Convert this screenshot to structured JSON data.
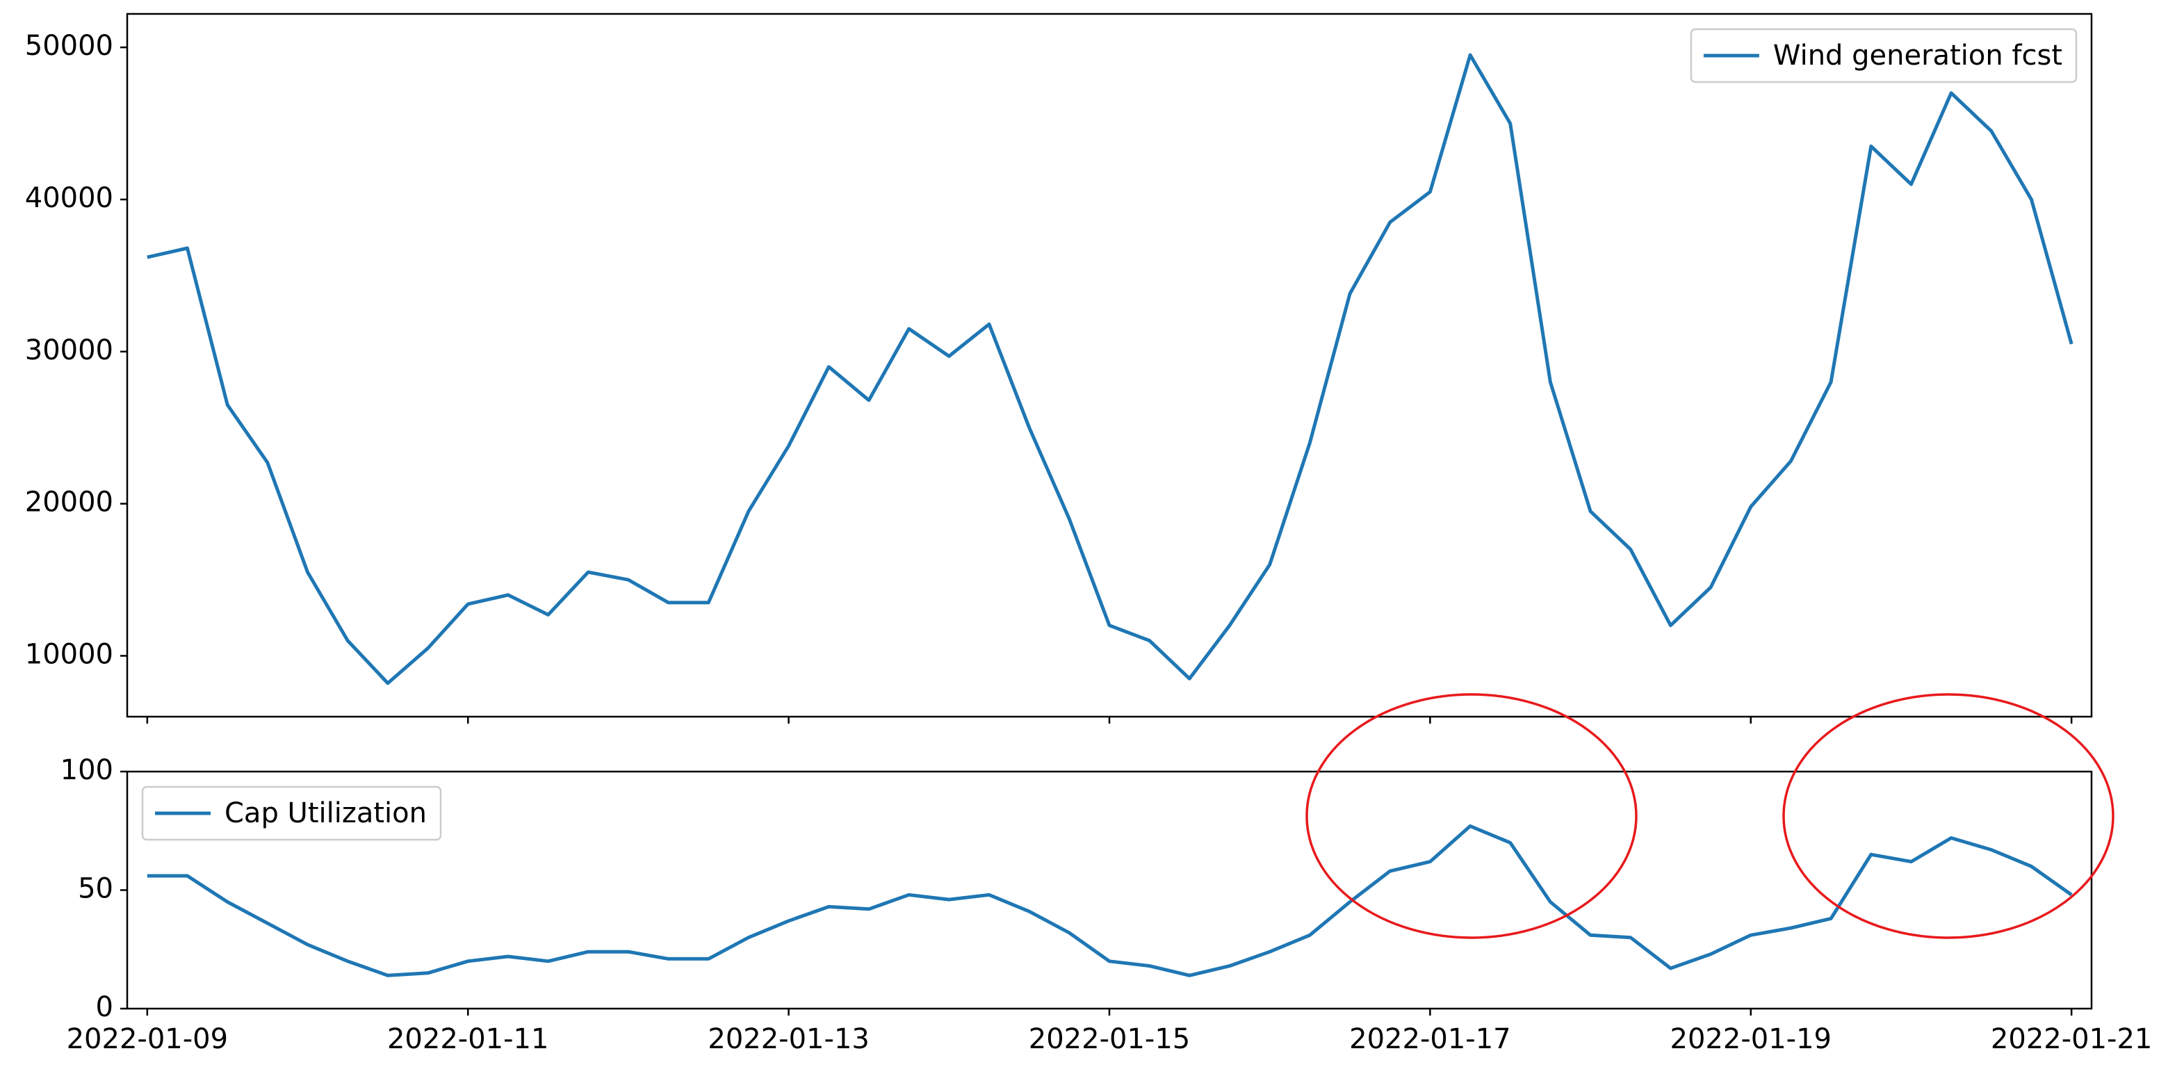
{
  "chart_data": [
    {
      "type": "line",
      "x": [
        "2022-01-09T00:00",
        "2022-01-09T06:00",
        "2022-01-09T12:00",
        "2022-01-09T18:00",
        "2022-01-10T00:00",
        "2022-01-10T06:00",
        "2022-01-10T12:00",
        "2022-01-10T18:00",
        "2022-01-11T00:00",
        "2022-01-11T06:00",
        "2022-01-11T12:00",
        "2022-01-11T18:00",
        "2022-01-12T00:00",
        "2022-01-12T06:00",
        "2022-01-12T12:00",
        "2022-01-12T18:00",
        "2022-01-13T00:00",
        "2022-01-13T06:00",
        "2022-01-13T12:00",
        "2022-01-13T18:00",
        "2022-01-14T00:00",
        "2022-01-14T06:00",
        "2022-01-14T12:00",
        "2022-01-14T18:00",
        "2022-01-15T00:00",
        "2022-01-15T06:00",
        "2022-01-15T12:00",
        "2022-01-15T18:00",
        "2022-01-16T00:00",
        "2022-01-16T06:00",
        "2022-01-16T12:00",
        "2022-01-16T18:00",
        "2022-01-17T00:00",
        "2022-01-17T06:00",
        "2022-01-17T12:00",
        "2022-01-17T18:00",
        "2022-01-18T00:00",
        "2022-01-18T06:00",
        "2022-01-18T12:00",
        "2022-01-18T18:00",
        "2022-01-19T00:00",
        "2022-01-19T06:00",
        "2022-01-19T12:00",
        "2022-01-19T18:00",
        "2022-01-20T00:00",
        "2022-01-20T06:00",
        "2022-01-20T12:00",
        "2022-01-20T18:00",
        "2022-01-21T00:00"
      ],
      "series": [
        {
          "name": "Wind generation fcst",
          "color": "#1f77b4",
          "values": [
            36200,
            36800,
            26500,
            22700,
            15500,
            11000,
            8200,
            10500,
            13400,
            14000,
            12700,
            15500,
            15000,
            13500,
            13500,
            19500,
            23800,
            29000,
            26800,
            31500,
            29700,
            31800,
            25000,
            19000,
            12000,
            11000,
            8500,
            12000,
            16000,
            24000,
            33800,
            38500,
            40500,
            49500,
            45000,
            28000,
            19500,
            17000,
            12000,
            14500,
            19800,
            22800,
            28000,
            43500,
            41000,
            47000,
            44500,
            40000,
            30500
          ]
        }
      ],
      "xlim": [
        "2022-01-08T21:00",
        "2022-01-21T03:00"
      ],
      "xticks": [
        "2022-01-09",
        "2022-01-11",
        "2022-01-13",
        "2022-01-15",
        "2022-01-17",
        "2022-01-19",
        "2022-01-21"
      ],
      "ylim": [
        6000,
        52200
      ],
      "yticks": [
        10000,
        20000,
        30000,
        40000,
        50000
      ],
      "legend": "upper right"
    },
    {
      "type": "line",
      "x": [
        "2022-01-09T00:00",
        "2022-01-09T06:00",
        "2022-01-09T12:00",
        "2022-01-09T18:00",
        "2022-01-10T00:00",
        "2022-01-10T06:00",
        "2022-01-10T12:00",
        "2022-01-10T18:00",
        "2022-01-11T00:00",
        "2022-01-11T06:00",
        "2022-01-11T12:00",
        "2022-01-11T18:00",
        "2022-01-12T00:00",
        "2022-01-12T06:00",
        "2022-01-12T12:00",
        "2022-01-12T18:00",
        "2022-01-13T00:00",
        "2022-01-13T06:00",
        "2022-01-13T12:00",
        "2022-01-13T18:00",
        "2022-01-14T00:00",
        "2022-01-14T06:00",
        "2022-01-14T12:00",
        "2022-01-14T18:00",
        "2022-01-15T00:00",
        "2022-01-15T06:00",
        "2022-01-15T12:00",
        "2022-01-15T18:00",
        "2022-01-16T00:00",
        "2022-01-16T06:00",
        "2022-01-16T12:00",
        "2022-01-16T18:00",
        "2022-01-17T00:00",
        "2022-01-17T06:00",
        "2022-01-17T12:00",
        "2022-01-17T18:00",
        "2022-01-18T00:00",
        "2022-01-18T06:00",
        "2022-01-18T12:00",
        "2022-01-18T18:00",
        "2022-01-19T00:00",
        "2022-01-19T06:00",
        "2022-01-19T12:00",
        "2022-01-19T18:00",
        "2022-01-20T00:00",
        "2022-01-20T06:00",
        "2022-01-20T12:00",
        "2022-01-20T18:00",
        "2022-01-21T00:00"
      ],
      "series": [
        {
          "name": "Cap Utilization",
          "color": "#1f77b4",
          "values": [
            56,
            56,
            45,
            36,
            27,
            20,
            14,
            15,
            20,
            22,
            20,
            24,
            24,
            21,
            21,
            30,
            37,
            43,
            42,
            48,
            46,
            48,
            41,
            32,
            20,
            18,
            14,
            18,
            24,
            31,
            45,
            58,
            62,
            77,
            70,
            45,
            31,
            30,
            17,
            23,
            31,
            34,
            38,
            65,
            62,
            72,
            67,
            60,
            48
          ]
        }
      ],
      "xlim": [
        "2022-01-08T21:00",
        "2022-01-21T03:00"
      ],
      "xticks": [
        "2022-01-09",
        "2022-01-11",
        "2022-01-13",
        "2022-01-15",
        "2022-01-17",
        "2022-01-19",
        "2022-01-21"
      ],
      "ylim": [
        0,
        100
      ],
      "yticks": [
        0,
        50,
        100
      ],
      "legend": "upper left"
    }
  ]
}
